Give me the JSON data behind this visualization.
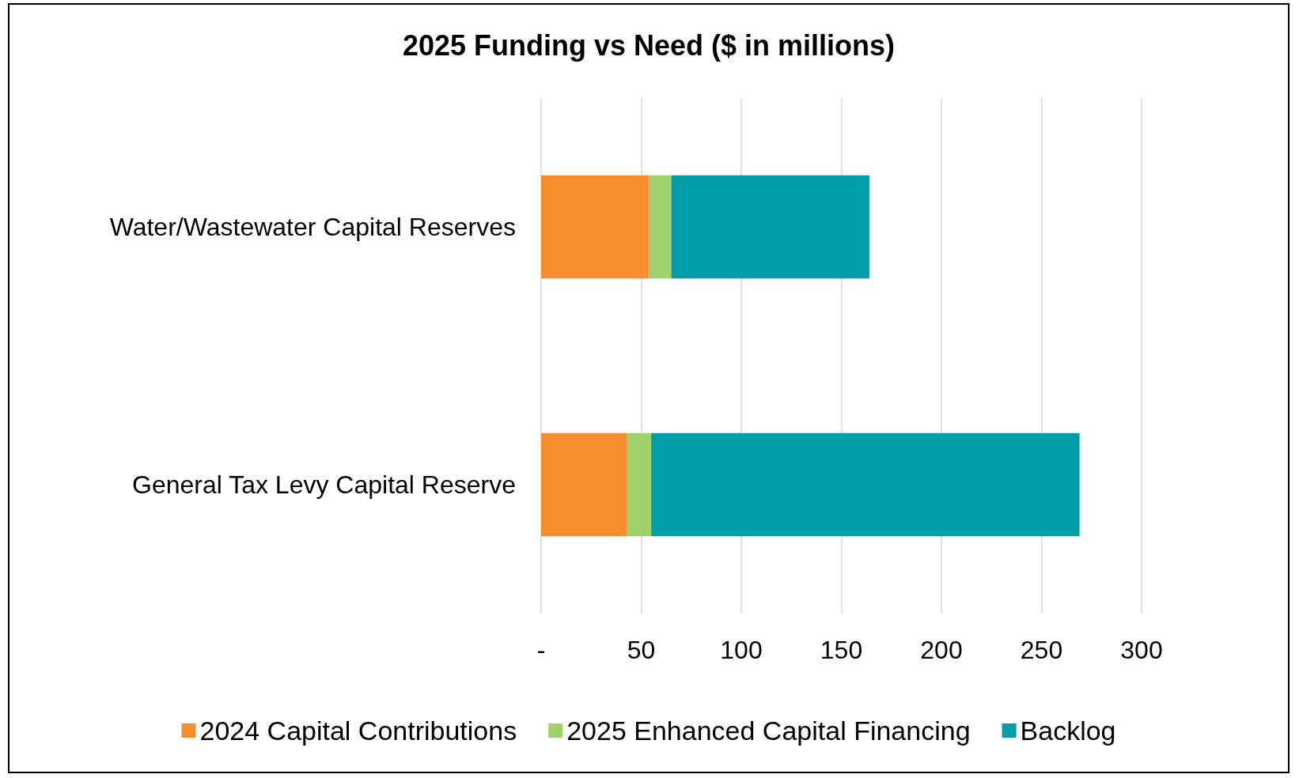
{
  "chart_data": {
    "type": "bar",
    "orientation": "horizontal",
    "stacked": true,
    "title": "2025 Funding vs Need ($ in millions)",
    "categories": [
      "Water/Wastewater Capital Reserves",
      "General Tax Levy Capital Reserve"
    ],
    "series": [
      {
        "name": "2024 Capital Contributions",
        "color": "#f68d2e",
        "values": [
          54,
          43
        ]
      },
      {
        "name": "2025 Enhanced Capital Financing",
        "color": "#a0d16b",
        "values": [
          11,
          12
        ]
      },
      {
        "name": "Backlog",
        "color": "#009ea9",
        "values": [
          99,
          214
        ]
      }
    ],
    "xlim": [
      0,
      300
    ],
    "xticks": [
      {
        "value": 0,
        "label": "-"
      },
      50,
      100,
      150,
      200,
      250,
      300
    ],
    "grid": "x",
    "legend": "bottom"
  }
}
